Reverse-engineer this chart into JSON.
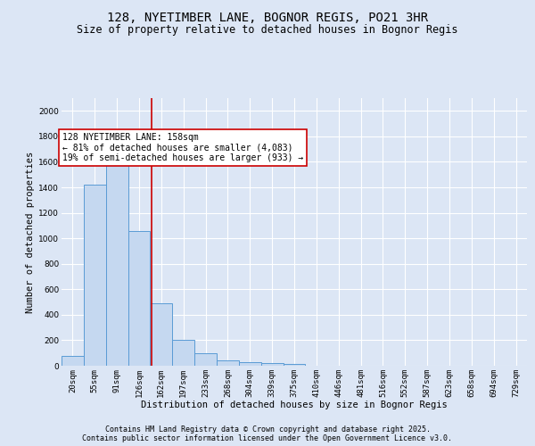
{
  "title1": "128, NYETIMBER LANE, BOGNOR REGIS, PO21 3HR",
  "title2": "Size of property relative to detached houses in Bognor Regis",
  "xlabel": "Distribution of detached houses by size in Bognor Regis",
  "ylabel": "Number of detached properties",
  "bin_labels": [
    "20sqm",
    "55sqm",
    "91sqm",
    "126sqm",
    "162sqm",
    "197sqm",
    "233sqm",
    "268sqm",
    "304sqm",
    "339sqm",
    "375sqm",
    "410sqm",
    "446sqm",
    "481sqm",
    "516sqm",
    "552sqm",
    "587sqm",
    "623sqm",
    "658sqm",
    "694sqm",
    "729sqm"
  ],
  "bar_heights": [
    80,
    1420,
    1610,
    1060,
    490,
    205,
    100,
    40,
    30,
    20,
    15,
    0,
    0,
    0,
    0,
    0,
    0,
    0,
    0,
    0,
    0
  ],
  "bar_color": "#c5d8f0",
  "bar_edge_color": "#5a9bd5",
  "vline_x": 3.55,
  "vline_color": "#cc0000",
  "annotation_text": "128 NYETIMBER LANE: 158sqm\n← 81% of detached houses are smaller (4,083)\n19% of semi-detached houses are larger (933) →",
  "annotation_box_color": "#ffffff",
  "annotation_box_edge_color": "#cc0000",
  "ylim": [
    0,
    2100
  ],
  "yticks": [
    0,
    200,
    400,
    600,
    800,
    1000,
    1200,
    1400,
    1600,
    1800,
    2000
  ],
  "bg_color": "#dce6f5",
  "plot_bg_color": "#dce6f5",
  "footer1": "Contains HM Land Registry data © Crown copyright and database right 2025.",
  "footer2": "Contains public sector information licensed under the Open Government Licence v3.0.",
  "title_fontsize": 10,
  "subtitle_fontsize": 8.5,
  "axis_label_fontsize": 7.5,
  "tick_fontsize": 6.5,
  "annotation_fontsize": 7,
  "footer_fontsize": 6
}
